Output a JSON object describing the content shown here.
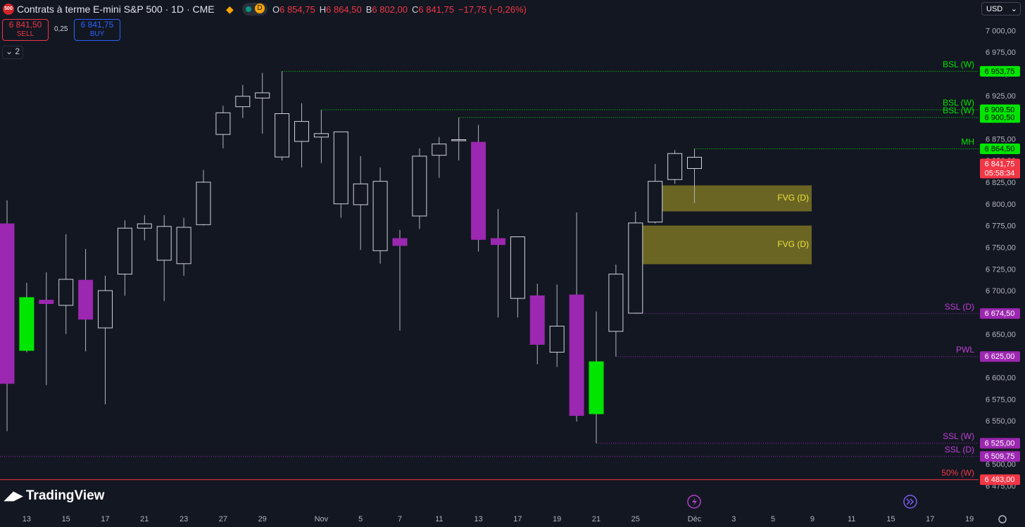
{
  "header": {
    "logo": "500",
    "title": "Contrats à terme E-mini S&P 500 · 1D · CME",
    "badge": "D",
    "ohlc": [
      {
        "key": "O",
        "value": "6 854,75"
      },
      {
        "key": "H",
        "value": "6 864,50"
      },
      {
        "key": "B",
        "value": "6 802,00"
      },
      {
        "key": "C",
        "value": "6 841,75"
      }
    ],
    "change": "−17,75 (−0,26%)",
    "sell": {
      "price": "6 841,50",
      "label": "SELL"
    },
    "spread": "0,25",
    "buy": {
      "price": "6 841,75",
      "label": "BUY"
    },
    "indicators": "2",
    "currency": "USD",
    "brand": "TradingView"
  },
  "chart_data": {
    "type": "candlestick",
    "categories": [
      null,
      "13",
      null,
      "15",
      null,
      "17",
      null,
      "21",
      null,
      "23",
      null,
      "27",
      null,
      "29",
      null,
      null,
      "Nov",
      null,
      "5",
      null,
      "7",
      null,
      "11",
      null,
      "13",
      null,
      "17",
      null,
      "19",
      null,
      "21",
      null,
      "25",
      null,
      null,
      "Déc",
      null,
      "3",
      null,
      "5",
      null,
      "9",
      null,
      "11",
      null,
      "15",
      null,
      "17",
      null,
      "19"
    ],
    "open": [
      6778,
      6632,
      6690,
      6684,
      6713,
      6658,
      6720,
      6773,
      6775,
      6732,
      6777,
      6881,
      6913,
      6923,
      6905,
      6896,
      6878,
      6884,
      6800,
      6827,
      6761,
      6787,
      6857,
      6875,
      6872,
      6761,
      6763,
      6695,
      6630,
      6696,
      6559,
      6654,
      6675,
      6780,
      6829,
      6854.75,
      null,
      null,
      null,
      null,
      null,
      null,
      null,
      null,
      null,
      null,
      null,
      null,
      null,
      null
    ],
    "high": [
      6805,
      6710,
      6722,
      6766,
      6749,
      6718,
      6782,
      6788,
      6788,
      6785,
      6840,
      6914,
      6938,
      6952,
      6953.75,
      6917,
      6909.5,
      6884,
      6856,
      6843,
      6771,
      6865,
      6878,
      6900.5,
      6892,
      6795,
      6763,
      6709,
      6708,
      6791,
      6677,
      6731,
      6792,
      6847,
      6863,
      6864.5,
      null,
      null,
      null,
      null,
      null,
      null,
      null,
      null,
      null,
      null,
      null,
      null,
      null,
      null
    ],
    "low": [
      6539,
      6630,
      6592,
      6651,
      6631,
      6570,
      6695,
      6759,
      6689,
      6718,
      6776,
      6865,
      6900,
      6882,
      6851,
      6843,
      6848,
      6785,
      6748,
      6732,
      6655,
      6772,
      6831,
      6851,
      6746,
      6670,
      6670,
      6616,
      6613,
      6550,
      6525,
      6625,
      6674.5,
      6778.5,
      6824,
      6802,
      null,
      null,
      null,
      null,
      null,
      null,
      null,
      null,
      null,
      null,
      null,
      null,
      null,
      null
    ],
    "close": [
      6594,
      6693,
      6686,
      6714,
      6668,
      6701,
      6773,
      6778,
      6736,
      6774,
      6826,
      6906,
      6925,
      6929,
      6855,
      6873,
      6882,
      6801,
      6824,
      6747,
      6753,
      6856,
      6870,
      6874,
      6760,
      6754,
      6692,
      6639,
      6660,
      6557,
      6619,
      6720,
      6779,
      6827,
      6859,
      6841.75,
      null,
      null,
      null,
      null,
      null,
      null,
      null,
      null,
      null,
      null,
      null,
      null,
      null,
      null
    ],
    "body_colors": [
      "#9c27b0",
      "#00e600",
      "#9c27b0",
      "#131722",
      "#9c27b0",
      "#131722",
      "#131722",
      "#131722",
      "#131722",
      "#131722",
      "#131722",
      "#131722",
      "#131722",
      "#131722",
      "#131722",
      "#131722",
      "#131722",
      "#131722",
      "#131722",
      "#131722",
      "#9c27b0",
      "#131722",
      "#131722",
      "#131722",
      "#9c27b0",
      "#9c27b0",
      "#131722",
      "#9c27b0",
      "#131722",
      "#9c27b0",
      "#00e600",
      "#131722",
      "#131722",
      "#131722",
      "#131722",
      "#131722",
      null,
      null,
      null,
      null,
      null,
      null,
      null,
      null,
      null,
      null,
      null,
      null,
      null,
      null
    ],
    "ylim": [
      6452,
      7036
    ],
    "yticks": [
      {
        "value": 7000,
        "label": "7 000,00"
      },
      {
        "value": 6975,
        "label": "6 975,00"
      },
      {
        "value": 6950,
        "label": "6 950,00"
      },
      {
        "value": 6925,
        "label": "6 925,00"
      },
      {
        "value": 6900,
        "label": "6 900,00"
      },
      {
        "value": 6875,
        "label": "6 875,00"
      },
      {
        "value": 6850,
        "label": "6 850,00"
      },
      {
        "value": 6825,
        "label": "6 825,00"
      },
      {
        "value": 6800,
        "label": "6 800,00"
      },
      {
        "value": 6775,
        "label": "6 775,00"
      },
      {
        "value": 6750,
        "label": "6 750,00"
      },
      {
        "value": 6725,
        "label": "6 725,00"
      },
      {
        "value": 6700,
        "label": "6 700,00"
      },
      {
        "value": 6675,
        "label": "6 675,00"
      },
      {
        "value": 6650,
        "label": "6 650,00"
      },
      {
        "value": 6625,
        "label": "6 625,00"
      },
      {
        "value": 6600,
        "label": "6 600,00"
      },
      {
        "value": 6575,
        "label": "6 575,00"
      },
      {
        "value": 6550,
        "label": "6 550,00"
      },
      {
        "value": 6525,
        "label": "6 525,00"
      },
      {
        "value": 6500,
        "label": "6 500,00"
      },
      {
        "value": 6475,
        "label": "6 475,00"
      }
    ],
    "grid": false,
    "zones": [
      {
        "name": "FVG (D)",
        "top": 6822.3,
        "bottom": 6792.3,
        "color": "#7a7322"
      },
      {
        "name": "FVG (D)",
        "top": 6776,
        "bottom": 6731.4,
        "color": "#7a7322"
      }
    ],
    "levels": [
      {
        "name": "BSL (W)",
        "value": 6953.75,
        "label": "6 953,75",
        "color": "#00e600"
      },
      {
        "name": "BSL (W)",
        "value": 6909.5,
        "label": "6 909,50",
        "color": "#00e600"
      },
      {
        "name": "BSL (W)",
        "value": 6900.5,
        "label": "6 900,50",
        "color": "#00e600"
      },
      {
        "name": "MH",
        "value": 6864.5,
        "label": "6 864,50",
        "color": "#00e600"
      },
      {
        "name": "SSL (D)",
        "value": 6674.5,
        "label": "6 674,50",
        "color": "#9c27b0"
      },
      {
        "name": "PWL",
        "value": 6625,
        "label": "6 625,00",
        "color": "#9c27b0"
      },
      {
        "name": "SSL (W)",
        "value": 6525,
        "label": "6 525,00",
        "color": "#9c27b0"
      },
      {
        "name": "SSL (D)",
        "value": 6509.75,
        "label": "6 509,75",
        "color": "#9c27b0"
      },
      {
        "name": "50% (W)",
        "value": 6483,
        "label": "6 483,00",
        "color": "#f23645"
      }
    ],
    "current": {
      "value": 6841.75,
      "label": "6 841,75",
      "countdown": "05:58:34",
      "color": "#f23645"
    }
  }
}
